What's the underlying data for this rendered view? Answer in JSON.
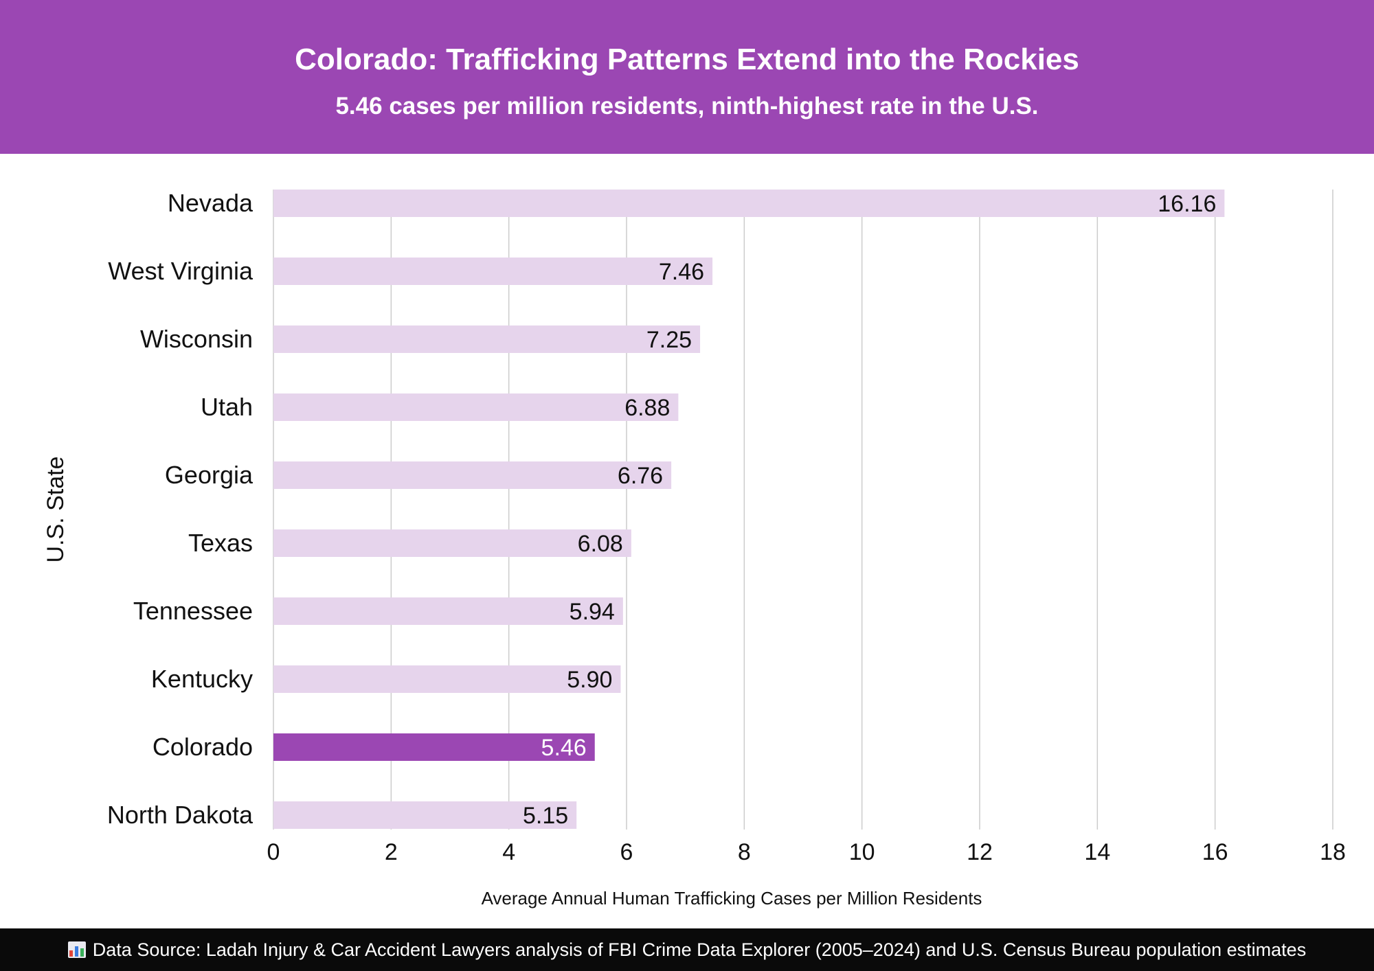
{
  "chart_data": {
    "type": "bar",
    "orientation": "horizontal",
    "title": "Colorado: Trafficking Patterns Extend into the Rockies",
    "subtitle": "5.46 cases per million residents, ninth-highest rate in the U.S.",
    "xlabel": "Average Annual Human Trafficking Cases per Million Residents",
    "ylabel": "U.S. State",
    "xlim": [
      0,
      18
    ],
    "xticks": [
      0,
      2,
      4,
      6,
      8,
      10,
      12,
      14,
      16,
      18
    ],
    "categories": [
      "Nevada",
      "West Virginia",
      "Wisconsin",
      "Utah",
      "Georgia",
      "Texas",
      "Tennessee",
      "Kentucky",
      "Colorado",
      "North Dakota"
    ],
    "values": [
      16.16,
      7.46,
      7.25,
      6.88,
      6.76,
      6.08,
      5.94,
      5.9,
      5.46,
      5.15
    ],
    "value_labels": [
      "16.16",
      "7.46",
      "7.25",
      "6.88",
      "6.76",
      "6.08",
      "5.94",
      "5.90",
      "5.46",
      "5.15"
    ],
    "highlight": "Colorado",
    "grid": "vertical"
  },
  "colors": {
    "header_bg": "#9b47b3",
    "bar_default": "#e6d4ec",
    "bar_highlight": "#9b47b3",
    "label_default": "#111111",
    "label_highlight": "#ffffff",
    "grid": "#cccccc",
    "footer_bg": "#0a0a0a"
  },
  "footer": {
    "icon": "bar-chart-icon",
    "text": "Data Source: Ladah Injury & Car Accident Lawyers analysis of FBI Crime Data Explorer (2005–2024) and U.S. Census Bureau population estimates"
  }
}
